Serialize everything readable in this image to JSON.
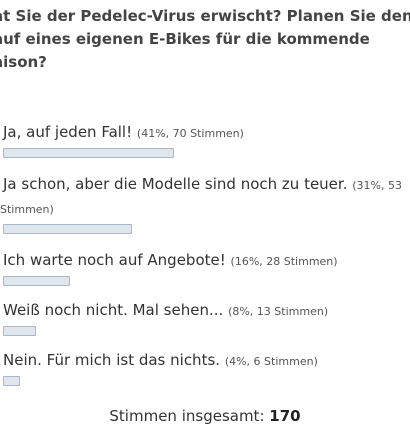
{
  "question": {
    "lines": [
      "at Sie der Pedelec-Virus erwischt? Planen Sie den",
      "auf eines eigenen E-Bikes für die kommende",
      "aison?"
    ]
  },
  "answers": [
    {
      "label": "Ja, auf jeden Fall!",
      "meta": "(41%, 70 Stimmen)",
      "percent": 41
    },
    {
      "label": "Ja schon, aber die Modelle sind noch zu teuer.",
      "meta": "(31%, 53",
      "meta_cont": "Stimmen)",
      "percent": 31
    },
    {
      "label": "Ich warte noch auf Angebote!",
      "meta": "(16%, 28 Stimmen)",
      "percent": 16
    },
    {
      "label": "Weiß noch nicht. Mal sehen...",
      "meta": "(8%, 13 Stimmen)",
      "percent": 8
    },
    {
      "label": "Nein. Für mich ist das nichts.",
      "meta": "(4%, 6 Stimmen)",
      "percent": 4
    }
  ],
  "total": {
    "label": "Stimmen insgesamt:",
    "value": "170"
  },
  "colors": {
    "bar_fill": "#dfe6ee",
    "bar_border": "#a9b8c8",
    "text": "#333333"
  }
}
